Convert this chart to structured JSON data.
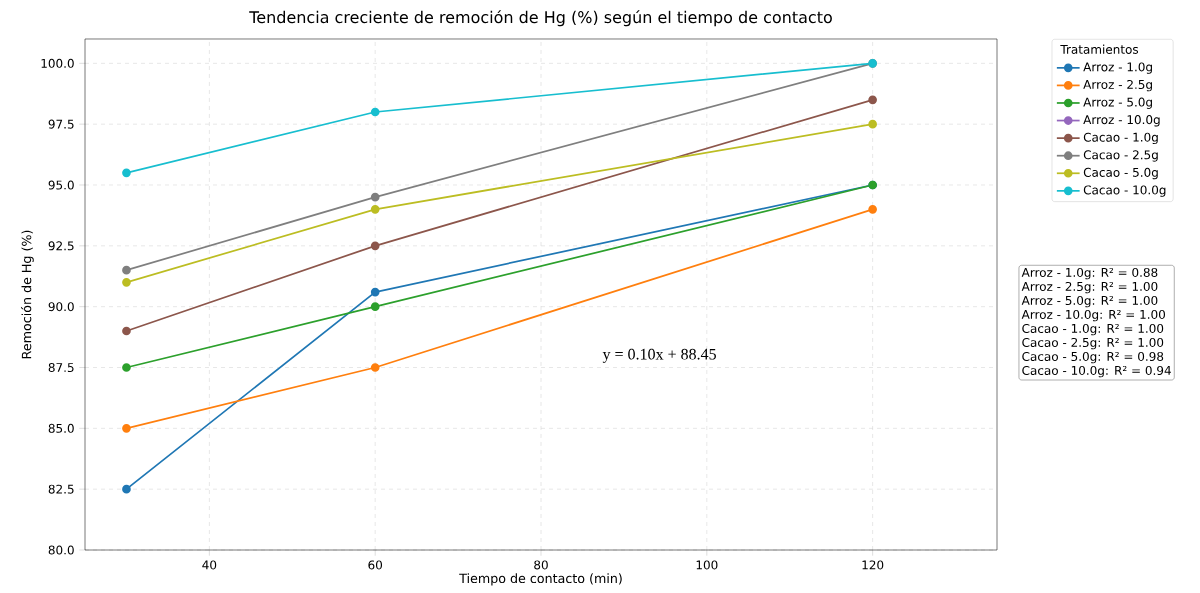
{
  "chart_data": {
    "type": "line",
    "title": "Tendencia creciente de remoción de Hg (%) según el tiempo de contacto",
    "xlabel": "Tiempo de contacto (min)",
    "ylabel": "Remoción de Hg (%)",
    "legend_title": "Tratamientos",
    "x": [
      30,
      60,
      120
    ],
    "series": [
      {
        "name": "Arroz - 1.0g",
        "color": "#1f77b4",
        "values": [
          82.5,
          90.6,
          95
        ]
      },
      {
        "name": "Arroz - 2.5g",
        "color": "#ff7f0e",
        "values": [
          85,
          87.5,
          94
        ]
      },
      {
        "name": "Arroz - 5.0g",
        "color": "#2ca02c",
        "values": [
          87.5,
          90,
          95
        ]
      },
      {
        "name": "Arroz - 10.0g",
        "color": "#9467bd",
        "values": [
          null,
          null,
          null
        ]
      },
      {
        "name": "Cacao - 1.0g",
        "color": "#8c564b",
        "values": [
          89,
          92.5,
          98.5
        ]
      },
      {
        "name": "Cacao - 2.5g",
        "color": "#7f7f7f",
        "values": [
          91.5,
          94.5,
          100
        ]
      },
      {
        "name": "Cacao - 5.0g",
        "color": "#bcbd22",
        "values": [
          91,
          94,
          97.5
        ]
      },
      {
        "name": "Cacao - 10.0g",
        "color": "#17becf",
        "values": [
          95.5,
          98,
          100
        ]
      }
    ],
    "xlim": [
      25,
      135
    ],
    "xticks": [
      40,
      60,
      80,
      100,
      120
    ],
    "ylim": [
      80,
      101
    ],
    "yticks": [
      {
        "value": 80,
        "label": "80.0"
      },
      {
        "value": 82.5,
        "label": "82.5"
      },
      {
        "value": 85,
        "label": "85.0"
      },
      {
        "value": 87.5,
        "label": "87.5"
      },
      {
        "value": 90,
        "label": "90.0"
      },
      {
        "value": 92.5,
        "label": "92.5"
      },
      {
        "value": 95,
        "label": "95.0"
      },
      {
        "value": 97.5,
        "label": "97.5"
      },
      {
        "value": 100,
        "label": "100.0"
      }
    ],
    "grid": true,
    "legend": "right",
    "marker": "circle",
    "line_style": "solid",
    "annotations": [
      "y = 0.10x + 88.45",
      "Arroz - 1.0g: R² = 0.88",
      "Arroz - 2.5g: R² = 1.00",
      "Arroz - 5.0g: R² = 1.00",
      "Arroz - 10.0g: R² = 1.00",
      "Cacao - 1.0g: R² = 1.00",
      "Cacao - 2.5g: R² = 1.00",
      "Cacao - 5.0g: R² = 0.98",
      "Cacao - 10.0g: R² = 0.94"
    ]
  }
}
